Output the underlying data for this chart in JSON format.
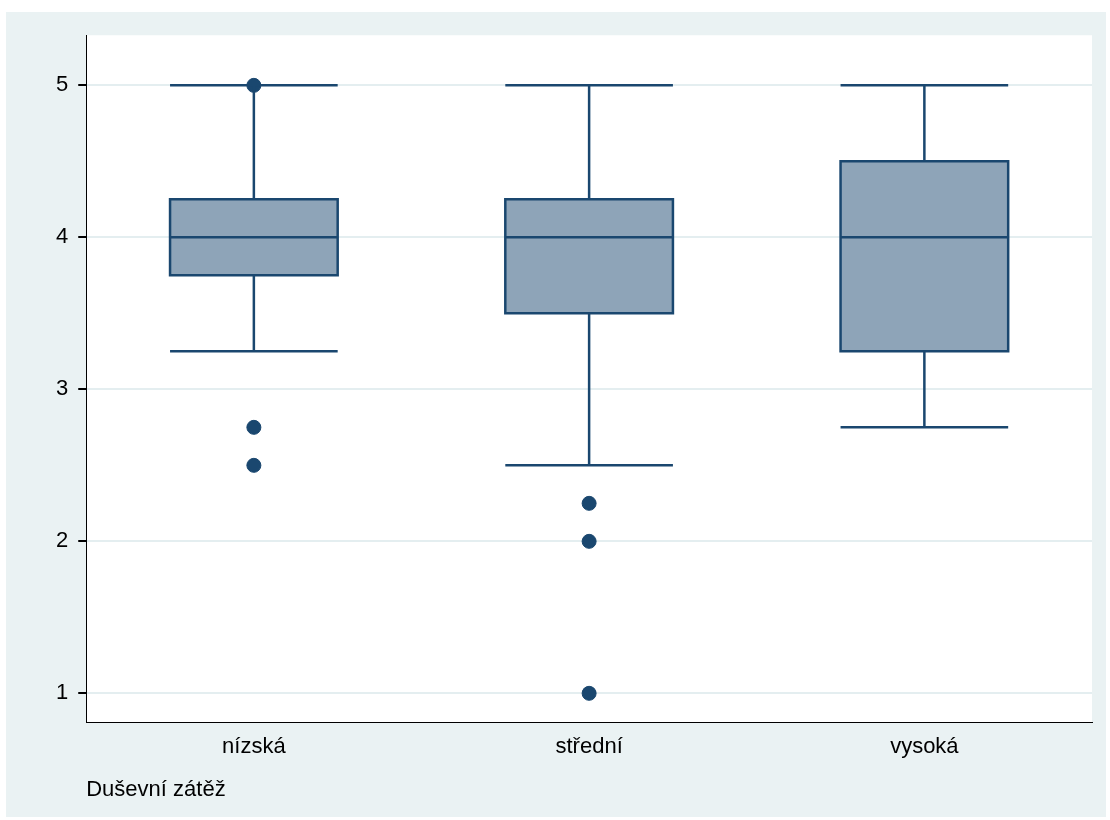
{
  "chart_data": {
    "type": "box",
    "xlabel": "Duševní zátěž",
    "categories": [
      "nízská",
      "střední",
      "vysoká"
    ],
    "color": "#8ea4b8",
    "boxes": [
      {
        "low": 3.25,
        "q1": 3.75,
        "median": 4,
        "q3": 4.25,
        "high": 5,
        "outliers": [
          2.75,
          2.5,
          5
        ]
      },
      {
        "low": 2.5,
        "q1": 3.5,
        "median": 4,
        "q3": 4.25,
        "high": 5,
        "outliers": [
          2.25,
          2,
          1
        ]
      },
      {
        "low": 2.75,
        "q1": 3.25,
        "median": 4,
        "q3": 4.5,
        "high": 5
      }
    ],
    "ylim": [
      0.81,
      5.33
    ],
    "yticks": [
      1,
      2,
      3,
      4,
      5
    ],
    "grid": "y",
    "legend": false
  }
}
